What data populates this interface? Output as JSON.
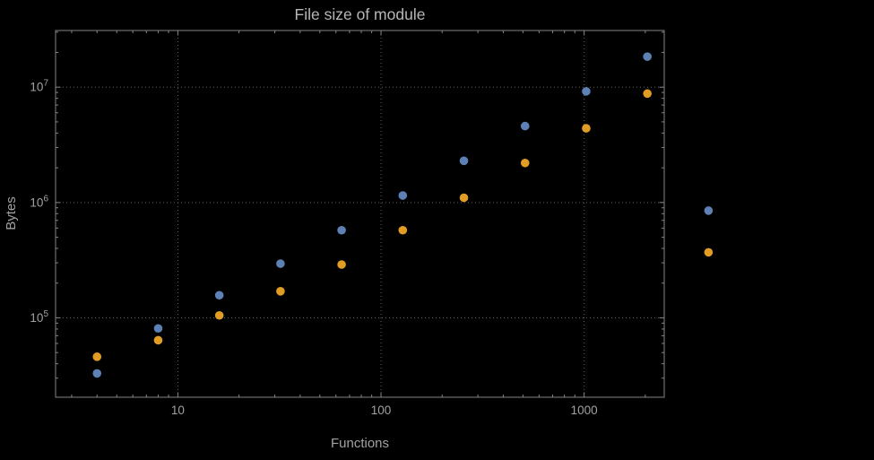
{
  "chart_data": {
    "type": "scatter",
    "title": "File size of module",
    "xlabel": "Functions",
    "ylabel": "Bytes",
    "xscale": "log",
    "yscale": "log",
    "xlim": [
      2.5,
      2480
    ],
    "ylim": [
      20500,
      31000000
    ],
    "grid": "dotted",
    "legend": "none",
    "x": [
      4,
      8,
      16,
      32,
      64,
      128,
      256,
      512,
      1024,
      2048,
      4096
    ],
    "series": [
      {
        "name": "series-blue",
        "color": "#5e81b5",
        "values": [
          33000,
          81000,
          157000,
          295000,
          575000,
          1150000,
          2300000,
          4600000,
          9200000,
          18400000,
          850000
        ]
      },
      {
        "name": "series-orange",
        "color": "#e19c24",
        "values": [
          46000,
          64000,
          105000,
          170000,
          290000,
          575000,
          1100000,
          2200000,
          4400000,
          8800000,
          370000
        ]
      }
    ],
    "x_ticks": [
      10,
      100,
      1000
    ],
    "x_tick_labels": [
      "10",
      "100",
      "1000"
    ],
    "y_tick_exponents": [
      5,
      6,
      7
    ],
    "y_tick_labels": [
      "10^5",
      "10^6",
      "10^7"
    ],
    "colors": {
      "background": "#000000",
      "frame": "#858585",
      "grid": "#5f5f5f",
      "tick_text": "#a2a2a2",
      "title_text": "#b6b6b6",
      "series_blue": "#5e81b5",
      "series_orange": "#e19c24"
    }
  }
}
